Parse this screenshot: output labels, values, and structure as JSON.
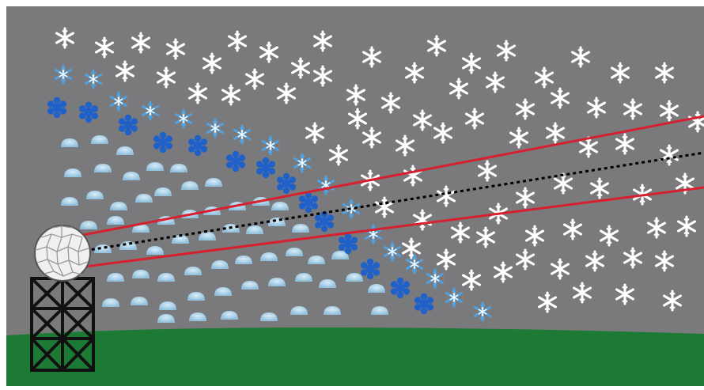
{
  "colors": {
    "sky": "#7a7a7c",
    "ground": "#1d7a35",
    "white_flake": "#ffffff",
    "light_blue_flake": "#4da3e6",
    "dark_blue_flake": "#1f61c9",
    "rain_drop": "#a9cde3",
    "beam": "#d7202f",
    "beam_center": "#000000",
    "radome": "#f0f0f0",
    "tower": "#111111"
  },
  "icons": {
    "radar": "radar-dome-icon",
    "tower": "lattice-tower-icon",
    "white_snowflake": "snowflake-icon",
    "light_blue_snowflake": "snowflake-icon",
    "dark_blue_snowflake": "snowflake-icon",
    "rain_drop": "raindrop-icon"
  },
  "layers": [
    "rain",
    "melting-snow-dark-blue",
    "wet-snow-light-blue",
    "dry-snow-white"
  ]
}
